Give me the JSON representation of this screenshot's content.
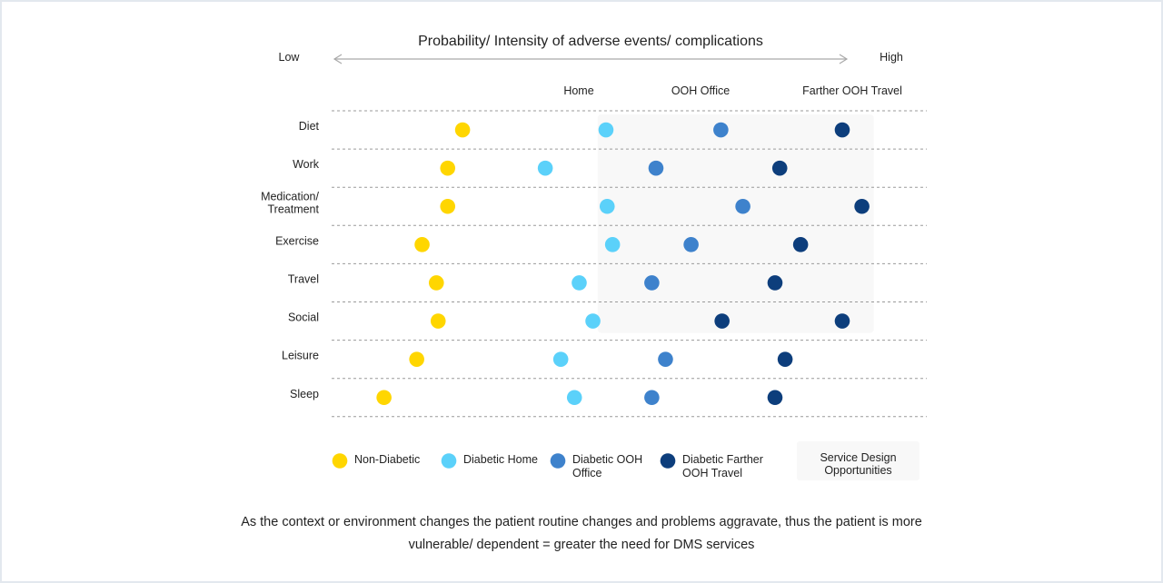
{
  "chart_data": {
    "type": "scatter",
    "title": "Probability/ Intensity of adverse events/ complications",
    "axis": {
      "low_label": "Low",
      "high_label": "High"
    },
    "context_labels": [
      "Home",
      "OOH Office",
      "Farther OOH Travel"
    ],
    "categories": [
      [
        "Diet"
      ],
      [
        "Work"
      ],
      [
        "Medication/",
        "Treatment"
      ],
      [
        "Exercise"
      ],
      [
        "Travel"
      ],
      [
        "Social"
      ],
      [
        "Leisure"
      ],
      [
        "Sleep"
      ]
    ],
    "xlim": [
      0,
      100
    ],
    "series": [
      {
        "name": "Non-Diabetic",
        "color": "#ffd600",
        "values": [
          22,
          19.5,
          19.5,
          15.2,
          17.6,
          17.9,
          14.3,
          8.8
        ]
      },
      {
        "name": "Diabetic Home",
        "color": "#5bd1fa",
        "values": [
          46.1,
          35.9,
          46.3,
          47.2,
          41.6,
          43.9,
          38.5,
          40.8
        ]
      },
      {
        "name": "Diabetic OOH Office",
        "color": "#3e82cc",
        "values": [
          65.4,
          54.5,
          69.1,
          60.4,
          53.8,
          null,
          56.1,
          53.8
        ]
      },
      {
        "name": "Diabetic Farther OOH Travel",
        "color": "#0d3e7c",
        "values": [
          85.8,
          75.3,
          89.1,
          78.8,
          74.5,
          65.6,
          76.2,
          74.5
        ]
      },
      {
        "name": "Diabetic Farther OOH Travel",
        "color": "#0d3e7c",
        "values": [
          null,
          null,
          null,
          null,
          null,
          85.8,
          null,
          null
        ]
      }
    ],
    "highlight": {
      "label": "Service Design Opportunities",
      "color": "#f8f8f8",
      "x_range": [
        44.7,
        91.1
      ],
      "rows": [
        0,
        5
      ]
    },
    "legend_position": "bottom"
  },
  "caption": {
    "line1": "As the context or environment changes the patient routine changes and problems aggravate, thus the patient is more",
    "line2": "vulnerable/ dependent  = greater the need for DMS services"
  }
}
